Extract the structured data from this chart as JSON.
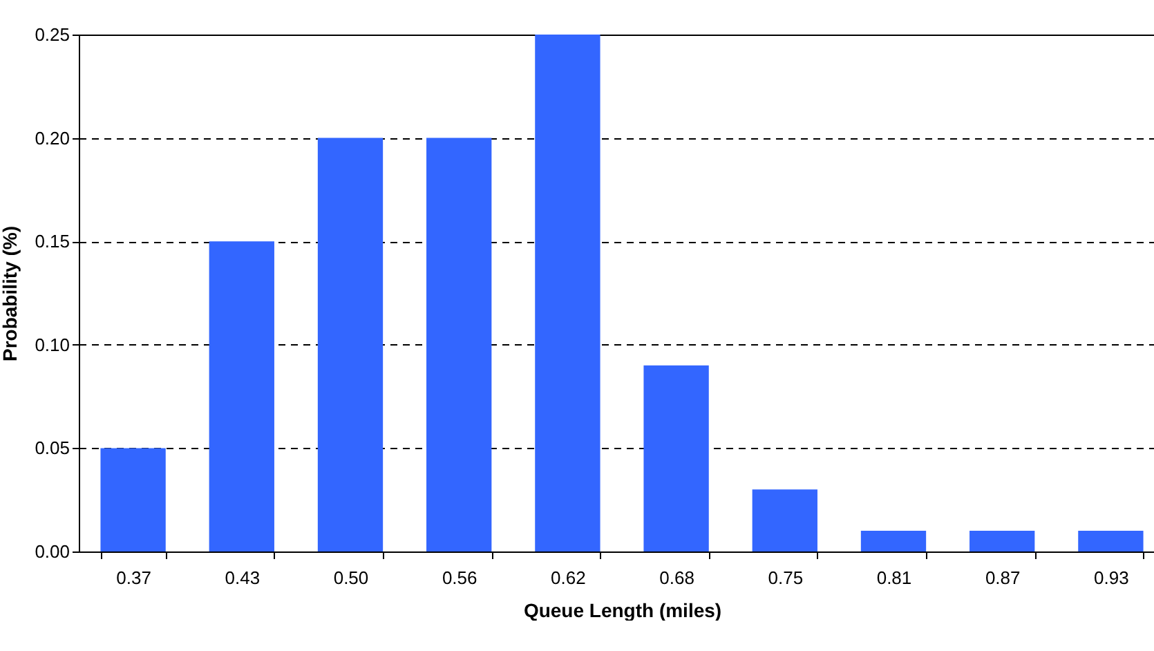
{
  "chart_data": {
    "type": "bar",
    "xlabel": "Queue Length (miles)",
    "ylabel": "Probability (%)",
    "categories": [
      "0.37",
      "0.43",
      "0.50",
      "0.56",
      "0.62",
      "0.68",
      "0.75",
      "0.81",
      "0.87",
      "0.93"
    ],
    "values": [
      0.05,
      0.15,
      0.2,
      0.2,
      0.25,
      0.09,
      0.03,
      0.01,
      0.01,
      0.01
    ],
    "color": "#3366ff",
    "ylim": [
      0,
      0.25
    ],
    "yticks": [
      {
        "value": 0,
        "label": "0.00"
      },
      {
        "value": 0.05,
        "label": "0.05"
      },
      {
        "value": 0.1,
        "label": "0.10"
      },
      {
        "value": 0.15,
        "label": "0.15"
      },
      {
        "value": 0.2,
        "label": "0.20"
      },
      {
        "value": 0.25,
        "label": "0.25"
      }
    ],
    "grid": "y"
  }
}
